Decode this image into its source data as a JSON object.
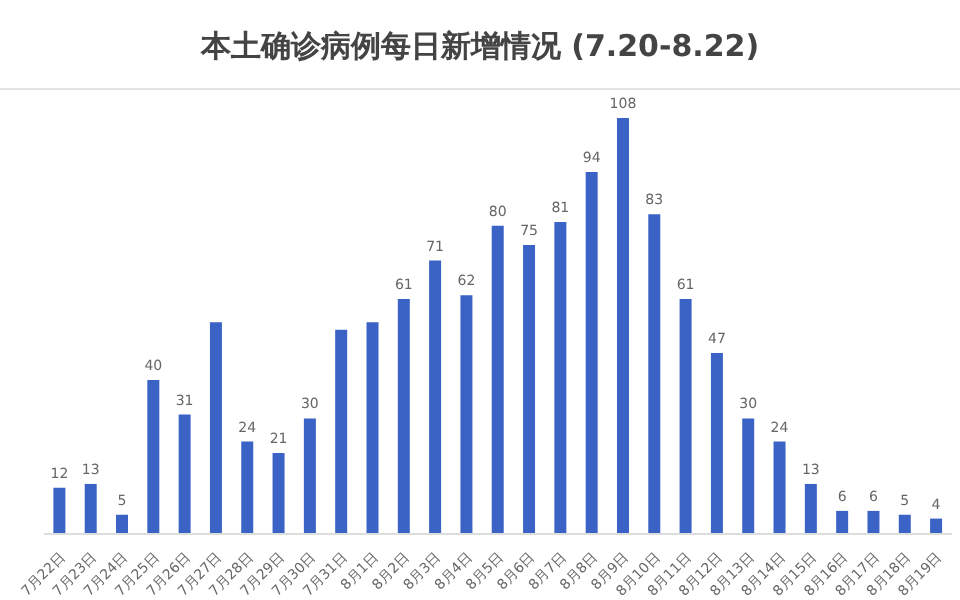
{
  "chart_data": {
    "type": "bar",
    "title": "本土确诊病例每日新增情况 (7.20-8.22)",
    "categories": [
      "7月22日",
      "7月23日",
      "7月24日",
      "7月25日",
      "7月26日",
      "7月27日",
      "7月28日",
      "7月29日",
      "7月30日",
      "7月31日",
      "8月1日",
      "8月2日",
      "8月3日",
      "8月4日",
      "8月5日",
      "8月6日",
      "8月7日",
      "8月8日",
      "8月9日",
      "8月10日",
      "8月11日",
      "8月12日",
      "8月13日",
      "8月14日",
      "8月15日",
      "8月16日",
      "8月17日",
      "8月18日",
      "8月19日"
    ],
    "values": [
      12,
      13,
      5,
      40,
      31,
      55,
      24,
      21,
      30,
      53,
      55,
      61,
      71,
      62,
      80,
      75,
      81,
      94,
      108,
      83,
      61,
      47,
      30,
      24,
      13,
      6,
      6,
      5,
      4
    ],
    "value_labels": [
      "12",
      "13",
      "5",
      "40",
      "31",
      null,
      "24",
      "21",
      "30",
      null,
      null,
      "61",
      "71",
      "62",
      "80",
      "75",
      "81",
      "94",
      "108",
      "83",
      "61",
      "47",
      "30",
      "24",
      "13",
      "6",
      "6",
      "5",
      "4"
    ],
    "color": "#3b63c6",
    "grid": false,
    "legend": false
  }
}
